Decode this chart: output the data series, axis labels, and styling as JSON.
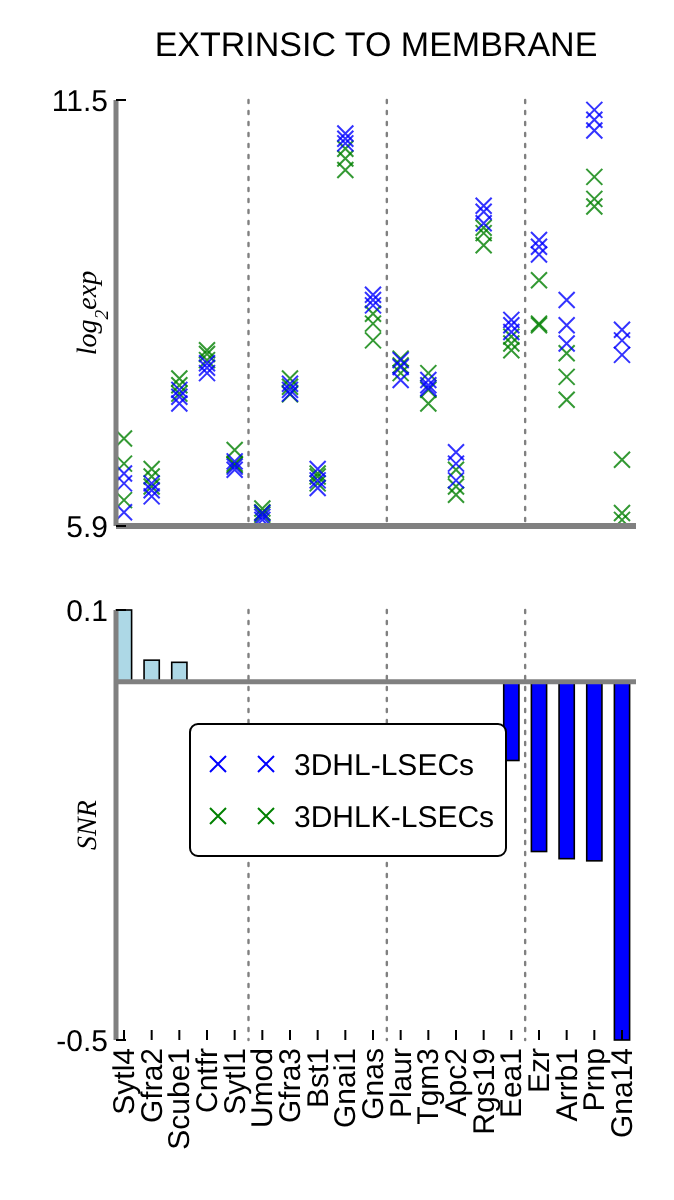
{
  "chart_data": [
    {
      "type": "scatter",
      "title": "EXTRINSIC TO MEMBRANE",
      "ylabel": "log$_{2}$exp",
      "categories": [
        "Sytl4",
        "Gfra2",
        "Scube1",
        "Cntfr",
        "Sytl1",
        "Umod",
        "Gfra3",
        "Bst1",
        "Gnai1",
        "Gnas",
        "Plaur",
        "Tgm3",
        "Apc2",
        "Rgs19",
        "Eea1",
        "Ezr",
        "Arrb1",
        "Prnp",
        "Gna14"
      ],
      "series": [
        {
          "name": "3DHL-LSECs",
          "color": "#0000ff",
          "x": [
            "Sytl4",
            "Sytl4",
            "Sytl4",
            "Gfra2",
            "Gfra2",
            "Gfra2",
            "Scube1",
            "Scube1",
            "Scube1",
            "Cntfr",
            "Cntfr",
            "Cntfr",
            "Sytl1",
            "Sytl1",
            "Sytl1",
            "Umod",
            "Umod",
            "Umod",
            "Gfra3",
            "Gfra3",
            "Gfra3",
            "Bst1",
            "Bst1",
            "Bst1",
            "Gnai1",
            "Gnai1",
            "Gnai1",
            "Gnas",
            "Gnas",
            "Gnas",
            "Plaur",
            "Plaur",
            "Plaur",
            "Tgm3",
            "Tgm3",
            "Tgm3",
            "Apc2",
            "Apc2",
            "Apc2",
            "Rgs19",
            "Rgs19",
            "Rgs19",
            "Eea1",
            "Eea1",
            "Eea1",
            "Ezr",
            "Ezr",
            "Ezr",
            "Arrb1",
            "Arrb1",
            "Arrb1",
            "Prnp",
            "Prnp",
            "Prnp",
            "Gna14",
            "Gna14",
            "Gna14"
          ],
          "values": [
            6.59,
            6.46,
            6.08,
            6.46,
            6.37,
            6.29,
            7.69,
            7.6,
            7.51,
            8.04,
            7.98,
            7.91,
            6.75,
            6.68,
            6.64,
            6.07,
            6.02,
            5.98,
            7.77,
            7.69,
            7.64,
            6.65,
            6.5,
            6.4,
            11.06,
            10.99,
            10.93,
            8.94,
            8.87,
            8.8,
            8.08,
            7.99,
            7.82,
            7.82,
            7.75,
            7.71,
            6.87,
            6.72,
            6.5,
            10.11,
            10.03,
            9.88,
            8.61,
            8.54,
            8.45,
            9.66,
            9.57,
            9.47,
            8.87,
            8.54,
            8.3,
            11.37,
            11.24,
            11.1,
            8.48,
            8.34,
            8.15
          ]
        },
        {
          "name": "3DHLK-LSECs",
          "color": "#008000",
          "x": [
            "Sytl4",
            "Sytl4",
            "Sytl4",
            "Gfra2",
            "Gfra2",
            "Gfra2",
            "Scube1",
            "Scube1",
            "Scube1",
            "Cntfr",
            "Cntfr",
            "Cntfr",
            "Sytl1",
            "Sytl1",
            "Sytl1",
            "Umod",
            "Umod",
            "Umod",
            "Gfra3",
            "Gfra3",
            "Gfra3",
            "Bst1",
            "Bst1",
            "Bst1",
            "Gnai1",
            "Gnai1",
            "Gnai1",
            "Gnas",
            "Gnas",
            "Gnas",
            "Plaur",
            "Plaur",
            "Plaur",
            "Tgm3",
            "Tgm3",
            "Tgm3",
            "Apc2",
            "Apc2",
            "Apc2",
            "Rgs19",
            "Rgs19",
            "Rgs19",
            "Eea1",
            "Eea1",
            "Eea1",
            "Ezr",
            "Ezr",
            "Ezr",
            "Arrb1",
            "Arrb1",
            "Arrb1",
            "Prnp",
            "Prnp",
            "Prnp",
            "Gna14",
            "Gna14",
            "Gna14"
          ],
          "values": [
            7.05,
            6.72,
            6.24,
            6.65,
            6.55,
            6.42,
            7.84,
            7.75,
            7.64,
            8.21,
            8.16,
            8.08,
            6.9,
            6.72,
            6.7,
            6.13,
            6.08,
            6.05,
            7.84,
            7.73,
            7.63,
            6.59,
            6.55,
            6.46,
            10.86,
            10.73,
            10.58,
            8.69,
            8.56,
            8.34,
            8.1,
            8.01,
            7.91,
            7.91,
            7.69,
            7.51,
            6.64,
            6.42,
            6.31,
            9.82,
            9.75,
            9.59,
            8.39,
            8.3,
            8.21,
            9.13,
            8.56,
            8.54,
            8.17,
            7.86,
            7.56,
            10.49,
            10.2,
            10.1,
            6.77,
            6.07,
            5.98
          ]
        }
      ],
      "ylim": [
        5.9,
        11.5
      ],
      "yticks": [
        5.9,
        11.5
      ],
      "tick_labels": "y",
      "marker": "cross",
      "legend": "bottom"
    },
    {
      "type": "bar",
      "ylabel": "SNR",
      "categories": [
        "Sytl4",
        "Gfra2",
        "Scube1",
        "Cntfr",
        "Sytl1",
        "Umod",
        "Gfra3",
        "Bst1",
        "Gnai1",
        "Gnas",
        "Plaur",
        "Tgm3",
        "Apc2",
        "Rgs19",
        "Eea1",
        "Ezr",
        "Arrb1",
        "Prnp",
        "Gna14"
      ],
      "values": [
        0.1,
        0.03,
        0.027,
        0,
        0,
        0,
        0,
        0,
        0,
        0,
        0,
        0,
        0,
        0,
        -0.11,
        -0.237,
        -0.247,
        -0.25,
        -0.5
      ],
      "colors": [
        "#add8e6",
        "#add8e6",
        "#add8e6",
        "#add8e6",
        "#add8e6",
        "#add8e6",
        "#add8e6",
        "#add8e6",
        "#add8e6",
        "#add8e6",
        "#add8e6",
        "#add8e6",
        "#add8e6",
        "#add8e6",
        "#0000ff",
        "#0000ff",
        "#0000ff",
        "#0000ff",
        "#0000ff"
      ],
      "ylim": [
        -0.5,
        0.1
      ],
      "yticks": [
        -0.5,
        0.1
      ]
    }
  ]
}
